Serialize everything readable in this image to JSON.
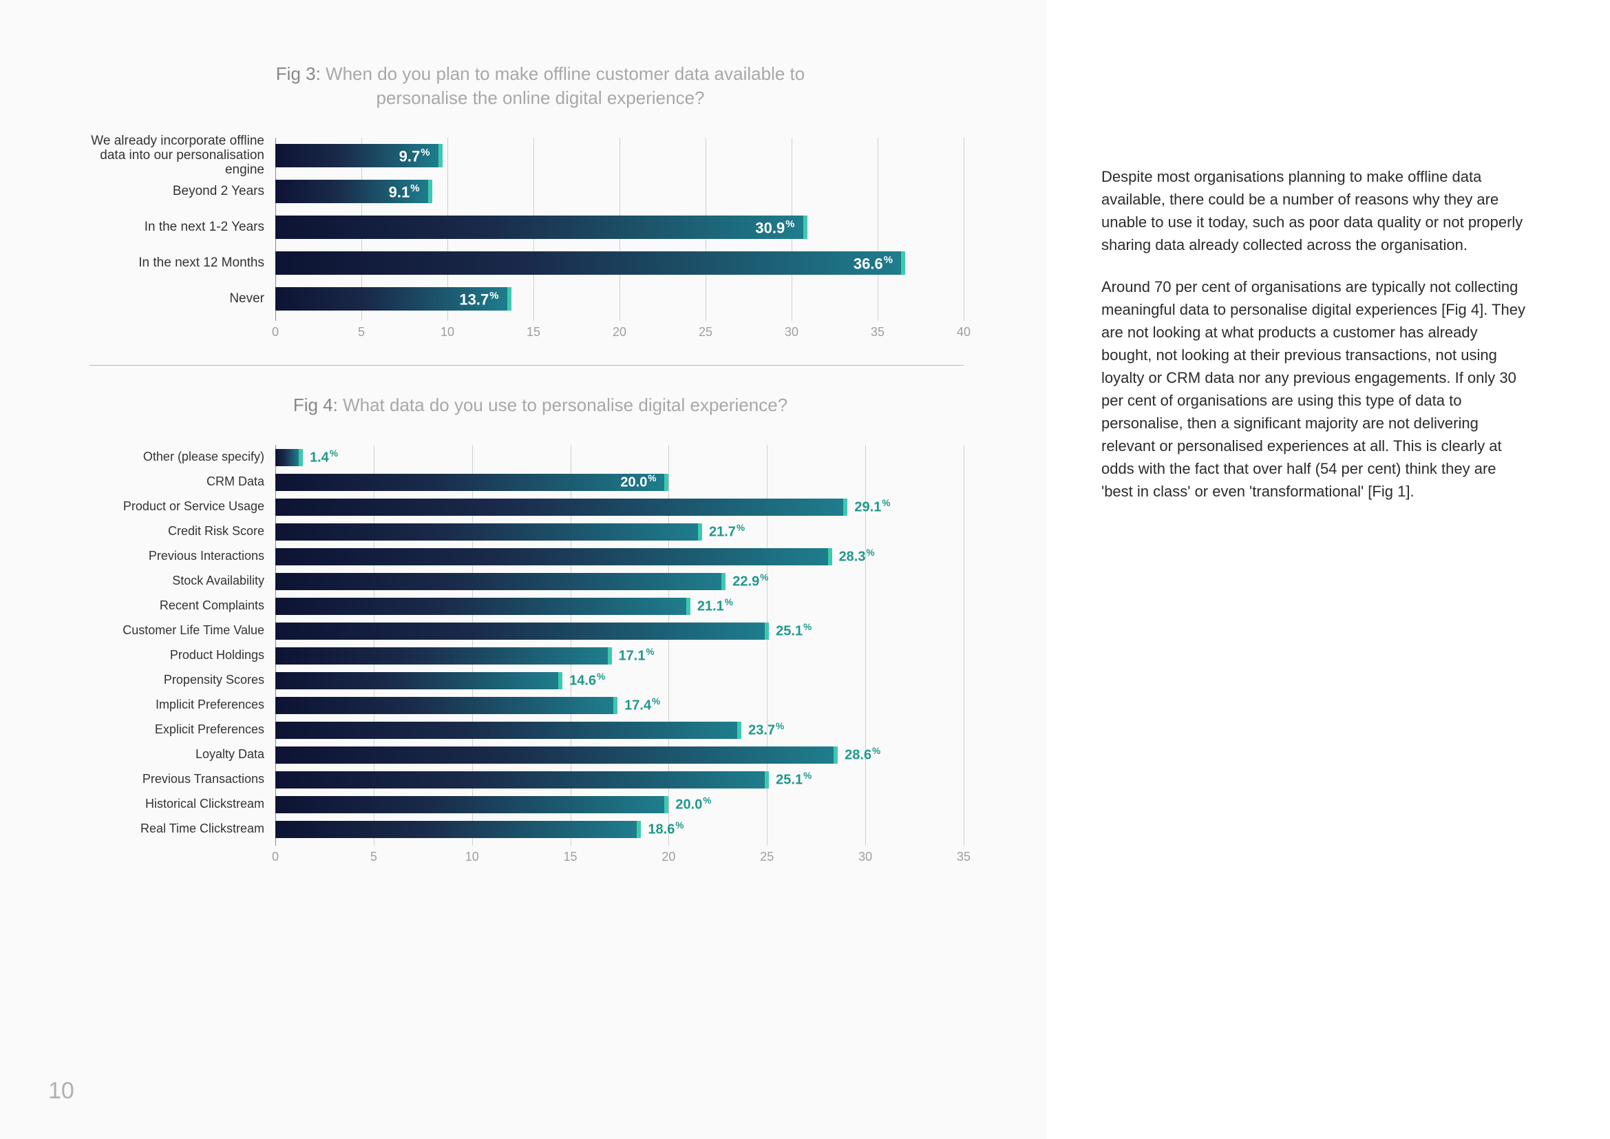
{
  "page_number": "10",
  "fig3": {
    "title_prefix": "Fig 3:",
    "title": "When do you plan to make offline customer data available to personalise the online digital experience?",
    "x_max": 40,
    "x_ticks": [
      0,
      5,
      10,
      15,
      20,
      25,
      30,
      35,
      40
    ],
    "grid_color": "#cfcfcf",
    "gradient_start": "#0d1333",
    "gradient_end": "#1e7d8c",
    "accent_cap": "#3dc9b0",
    "value_outside_color": "#1e998c",
    "bars": [
      {
        "label": "We already incorporate offline data into our personalisation engine",
        "value": 9.7,
        "label_inside": true
      },
      {
        "label": "Beyond 2 Years",
        "value": 9.1,
        "label_inside": true
      },
      {
        "label": "In the next 1-2 Years",
        "value": 30.9,
        "label_inside": true
      },
      {
        "label": "In the next 12 Months",
        "value": 36.6,
        "label_inside": true
      },
      {
        "label": "Never",
        "value": 13.7,
        "label_inside": true
      }
    ]
  },
  "fig4": {
    "title_prefix": "Fig 4:",
    "title": "What data do you use to personalise digital experience?",
    "x_max": 35,
    "x_ticks": [
      0,
      5,
      10,
      15,
      20,
      25,
      30,
      35
    ],
    "bars": [
      {
        "label": "Other (please specify)",
        "value": 1.4,
        "label_inside": false
      },
      {
        "label": "CRM Data",
        "value": 20.0,
        "label_inside": true
      },
      {
        "label": "Product or Service Usage",
        "value": 29.1,
        "label_inside": false
      },
      {
        "label": "Credit Risk Score",
        "value": 21.7,
        "label_inside": false
      },
      {
        "label": "Previous Interactions",
        "value": 28.3,
        "label_inside": false
      },
      {
        "label": "Stock Availability",
        "value": 22.9,
        "label_inside": false
      },
      {
        "label": "Recent Complaints",
        "value": 21.1,
        "label_inside": false
      },
      {
        "label": "Customer Life Time Value",
        "value": 25.1,
        "label_inside": false
      },
      {
        "label": "Product Holdings",
        "value": 17.1,
        "label_inside": false
      },
      {
        "label": "Propensity Scores",
        "value": 14.6,
        "label_inside": false
      },
      {
        "label": "Implicit Preferences",
        "value": 17.4,
        "label_inside": false
      },
      {
        "label": "Explicit Preferences",
        "value": 23.7,
        "label_inside": false
      },
      {
        "label": "Loyalty Data",
        "value": 28.6,
        "label_inside": false
      },
      {
        "label": "Previous Transactions",
        "value": 25.1,
        "label_inside": false
      },
      {
        "label": "Historical Clickstream",
        "value": 20.0,
        "label_inside": false
      },
      {
        "label": "Real Time Clickstream",
        "value": 18.6,
        "label_inside": false
      }
    ]
  },
  "body": {
    "p1": "Despite most organisations planning to make offline data available, there could be a number of reasons why they are unable to use it today, such as poor data quality or not properly sharing data already collected across the organisation.",
    "p2": "Around 70 per cent of organisations are typically not collecting meaningful data to personalise digital experiences [Fig 4]. They are not looking at what products a customer has already bought, not looking at their previous transactions, not using loyalty or CRM data nor any previous engagements. If only 30 per cent of organisations are using this type of data to personalise, then a significant majority are not delivering relevant or personalised experiences at all. This is clearly at odds with the fact that over half (54 per cent) think they are 'best in class' or even 'transformational' [Fig 1]."
  }
}
